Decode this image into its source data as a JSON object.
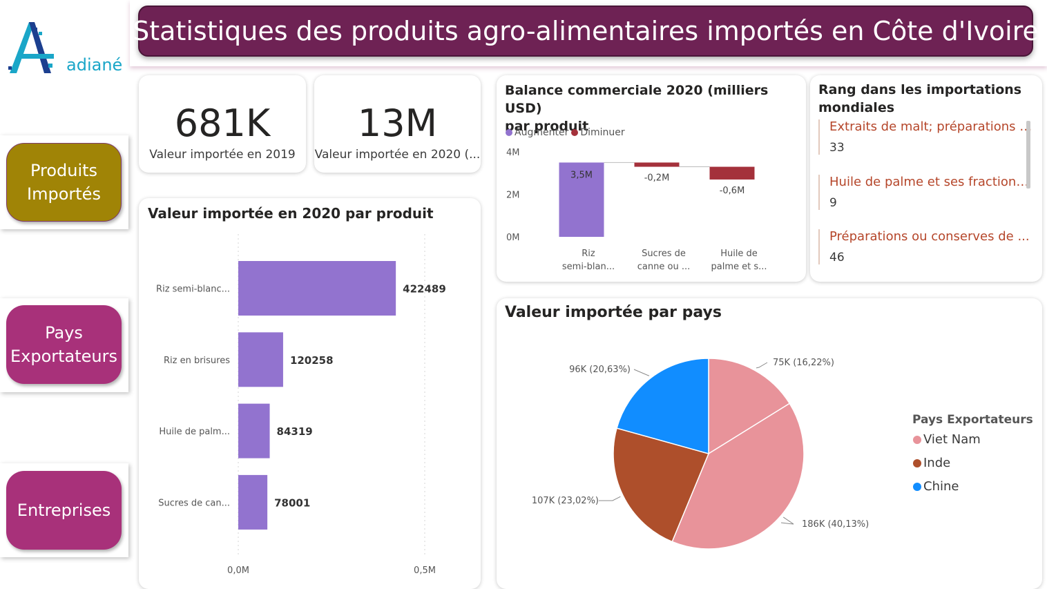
{
  "header": {
    "title": "Statistiques des produits agro-alimentaires importés en Côte d'Ivoire",
    "logo_text": "adiané"
  },
  "nav": [
    {
      "line1": "Produits",
      "line2": "Importés",
      "color": "#a08406"
    },
    {
      "line1": "Pays",
      "line2": "Exportateurs",
      "color": "#a8317a"
    },
    {
      "line1": "Entreprises",
      "line2": "",
      "color": "#a8317a"
    }
  ],
  "kpis": [
    {
      "value": "681K",
      "label": "Valeur importée en 2019"
    },
    {
      "value": "13M",
      "label": "Valeur importée en 2020 (..."
    }
  ],
  "bar_card": {
    "title": "Valeur importée en 2020 par produit",
    "color": "#9273cf"
  },
  "waterfall_card": {
    "title_line1": "Balance commerciale 2020 (milliers USD)",
    "title_line2": "par produit",
    "legend": [
      {
        "label": "Augmenter",
        "color": "#9273cf"
      },
      {
        "label": "Diminuer",
        "color": "#a4313b"
      }
    ]
  },
  "rank_card": {
    "title_line1": "Rang dans les importations",
    "title_line2": "mondiales",
    "items": [
      {
        "name": "Extraits de malt; préparations a...",
        "value": "33"
      },
      {
        "name": "Huile de palme et ses fractions,...",
        "value": "9"
      },
      {
        "name": "Préparations ou conserves de ...",
        "value": "46"
      }
    ]
  },
  "pie_card": {
    "title": "Valeur importée par pays",
    "legend_title": "Pays Exportateurs",
    "legend": [
      {
        "label": "Viet Nam",
        "color": "#e8939a"
      },
      {
        "label": "Inde",
        "color": "#ae4f2b"
      },
      {
        "label": "Chine",
        "color": "#118dff"
      }
    ]
  },
  "chart_data": [
    {
      "type": "bar",
      "orientation": "horizontal",
      "title": "Valeur importée en 2020 par produit",
      "categories": [
        "Riz semi-blanc...",
        "Riz en brisures",
        "Huile de palm...",
        "Sucres de can..."
      ],
      "values": [
        422489,
        120258,
        84319,
        78001
      ],
      "data_labels": [
        "422489",
        "120258",
        "84319",
        "78001"
      ],
      "xlim": [
        0,
        500000
      ],
      "x_ticks": [
        "0,0M",
        "0,5M"
      ],
      "grid": true
    },
    {
      "type": "waterfall",
      "title": "Balance commerciale 2020 (milliers USD) par produit",
      "categories": [
        "Riz semi-blan...",
        "Sucres de canne ou ...",
        "Huile de palme et s..."
      ],
      "category_lines": [
        [
          "Riz",
          "semi-blan..."
        ],
        [
          "Sucres de",
          "canne ou ..."
        ],
        [
          "Huile de",
          "palme et s..."
        ]
      ],
      "values": [
        3500000,
        -200000,
        -600000
      ],
      "data_labels": [
        "3,5M",
        "-0,2M",
        "-0,6M"
      ],
      "ylim": [
        0,
        4000000
      ],
      "y_ticks": [
        "0M",
        "2M",
        "4M"
      ],
      "series": [
        {
          "name": "Augmenter",
          "color": "#9273cf"
        },
        {
          "name": "Diminuer",
          "color": "#a4313b"
        }
      ],
      "legend_position": "top-left"
    },
    {
      "type": "pie",
      "title": "Valeur importée par pays",
      "legend_title": "Pays Exportateurs",
      "slices": [
        {
          "label": "Viet Nam",
          "value": 75,
          "display": "75K (16,22%)",
          "color": "#e8939a"
        },
        {
          "label": "Viet Nam",
          "value": 186,
          "display": "186K (40,13%)",
          "color": "#e8939a"
        },
        {
          "label": "Inde",
          "value": 107,
          "display": "107K (23,02%)",
          "color": "#ae4f2b"
        },
        {
          "label": "Chine",
          "value": 96,
          "display": "96K (20,63%)",
          "color": "#118dff"
        }
      ],
      "legend_position": "right"
    }
  ]
}
